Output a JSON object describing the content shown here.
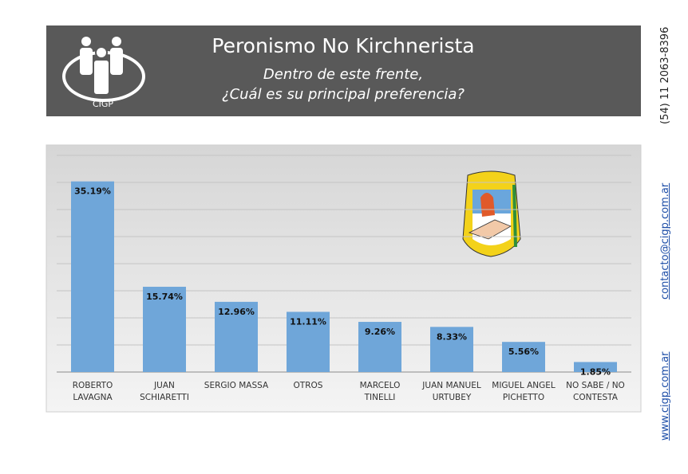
{
  "header": {
    "logo_text": "CIGP",
    "title": "Peronismo No Kirchnerista",
    "subtitle_1": "Dentro de este frente,",
    "subtitle_2": "¿Cuál es su principal preferencia?"
  },
  "contact": {
    "phone": "(54) 11 2063-8396",
    "email": "contacto@cigp.com.ar",
    "web": "www.cigp.com.ar"
  },
  "chart_data": {
    "type": "bar",
    "categories": [
      "ROBERTO\nLAVAGNA",
      "JUAN\nSCHIARETTI",
      "SERGIO MASSA",
      "OTROS",
      "MARCELO\nTINELLI",
      "JUAN MANUEL\nURTUBEY",
      "MIGUEL ANGEL\nPICHETTO",
      "NO SABE / NO\nCONTESTA"
    ],
    "values": [
      35.19,
      15.74,
      12.96,
      11.11,
      9.26,
      8.33,
      5.56,
      1.85
    ],
    "value_labels": [
      "35.19%",
      "15.74%",
      "12.96%",
      "11.11%",
      "9.26%",
      "8.33%",
      "5.56%",
      "1.85%"
    ],
    "color": "#6fa6d9",
    "ylim": [
      0,
      40
    ],
    "yticks": [
      0,
      5,
      10,
      15,
      20,
      25,
      30,
      35,
      40
    ],
    "grid": true
  }
}
